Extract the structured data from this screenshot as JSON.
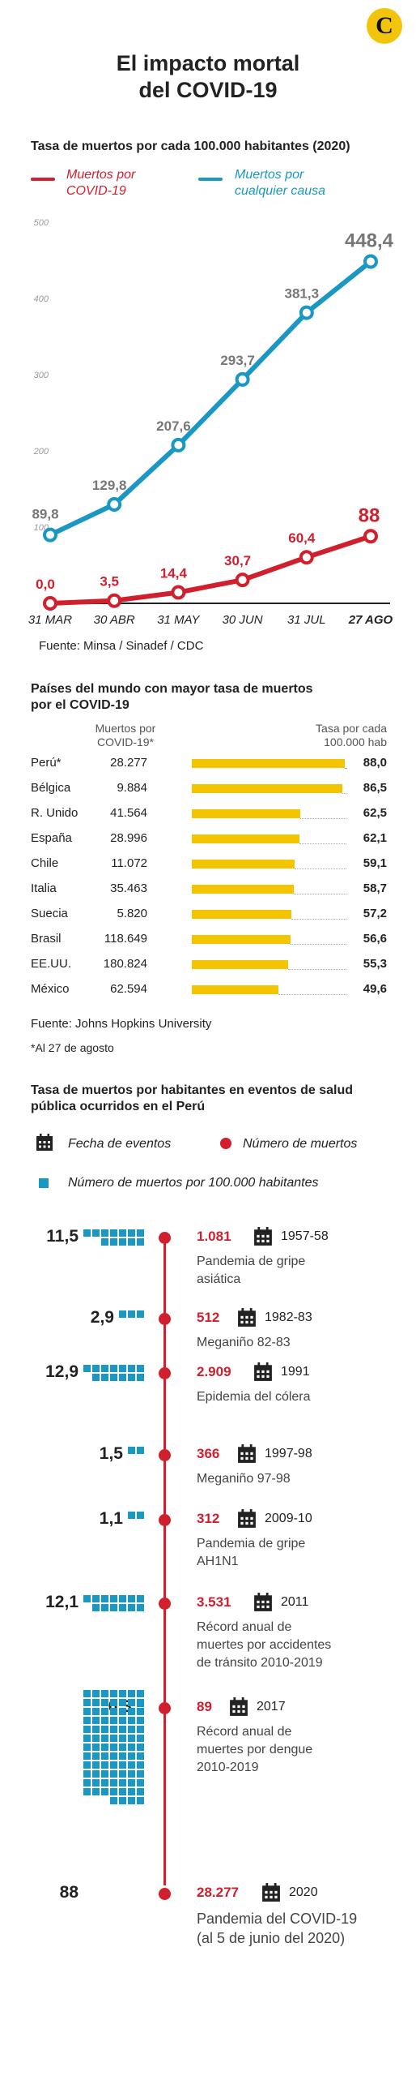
{
  "logo": {
    "letter": "C"
  },
  "title_line1": "El impacto mortal",
  "title_line2": "del COVID-19",
  "section1": {
    "title": "Tasa de muertos por cada 100.000 habitantes (2020)",
    "legend_red_line1": "Muertos por",
    "legend_red_line2": "COVID-19",
    "legend_blue_line1": "Muertos por",
    "legend_blue_line2": "cualquier causa",
    "source": "Fuente: Minsa / Sinadef / CDC"
  },
  "chart_data": {
    "type": "line",
    "categories": [
      "31 MAR",
      "30 ABR",
      "31 MAY",
      "30 JUN",
      "31 JUL",
      "27 AGO"
    ],
    "ylim": [
      0,
      500
    ],
    "yticks": [
      0,
      100,
      200,
      300,
      400,
      500
    ],
    "series": [
      {
        "name": "Muertos por COVID-19",
        "color": "#d0202e",
        "values": [
          0.0,
          3.5,
          14.4,
          30.7,
          60.4,
          88
        ],
        "labels": [
          "0,0",
          "3,5",
          "14,4",
          "30,7",
          "60,4",
          "88"
        ]
      },
      {
        "name": "Muertos por cualquier causa",
        "color": "#1a97c2",
        "values": [
          89.8,
          129.8,
          207.6,
          293.7,
          381.3,
          448.4
        ],
        "labels": [
          "89,8",
          "129,8",
          "207,6",
          "293,7",
          "381,3",
          "448,4"
        ]
      }
    ],
    "grid": false,
    "legend": "top"
  },
  "section2": {
    "title_line1": "Países del mundo con mayor tasa de muertos",
    "title_line2": "por el COVID-19",
    "col_deaths_line1": "Muertos por",
    "col_deaths_line2": "COVID-19*",
    "col_rate_line1": "Tasa por cada",
    "col_rate_line2": "100.000 hab",
    "rows": [
      {
        "country": "Perú*",
        "deaths": "28.277",
        "rate": "88,0",
        "rate_value": 88.0
      },
      {
        "country": "Bélgica",
        "deaths": "9.884",
        "rate": "86,5",
        "rate_value": 86.5
      },
      {
        "country": "R. Unido",
        "deaths": "41.564",
        "rate": "62,5",
        "rate_value": 62.5
      },
      {
        "country": "España",
        "deaths": "28.996",
        "rate": "62,1",
        "rate_value": 62.1
      },
      {
        "country": "Chile",
        "deaths": "11.072",
        "rate": "59,1",
        "rate_value": 59.1
      },
      {
        "country": "Italia",
        "deaths": "35.463",
        "rate": "58,7",
        "rate_value": 58.7
      },
      {
        "country": "Suecia",
        "deaths": "5.820",
        "rate": "57,2",
        "rate_value": 57.2
      },
      {
        "country": "Brasil",
        "deaths": "118.649",
        "rate": "56,6",
        "rate_value": 56.6
      },
      {
        "country": "EE.UU.",
        "deaths": "180.824",
        "rate": "55,3",
        "rate_value": 55.3
      },
      {
        "country": "México",
        "deaths": "62.594",
        "rate": "49,6",
        "rate_value": 49.6
      }
    ],
    "bar_color": "#f5c400",
    "source": "Fuente: Johns Hopkins University",
    "footnote": "*Al 27 de agosto"
  },
  "section3": {
    "title_line1": "Tasa de muertos por habitantes en eventos de salud",
    "title_line2": "pública ocurridos en el Perú",
    "legend_calendar": "Fecha de eventos",
    "legend_dot": "Número de muertos",
    "legend_square": "Número de muertos por 100.000 habitantes",
    "square_color": "#1a97c2",
    "dot_color": "#d0202e",
    "events": [
      {
        "value": "11,5",
        "rate": 11.5,
        "deaths": "1.081",
        "year": "1957-58",
        "desc": [
          "Pandemia de gripe",
          "asiática"
        ]
      },
      {
        "value": "2,9",
        "rate": 2.9,
        "deaths": "512",
        "year": "1982-83",
        "desc": [
          "Meganiño 82-83"
        ]
      },
      {
        "value": "12,9",
        "rate": 12.9,
        "deaths": "2.909",
        "year": "1991",
        "desc": [
          "Epidemia del cólera"
        ]
      },
      {
        "value": "1,5",
        "rate": 1.5,
        "deaths": "366",
        "year": "1997-98",
        "desc": [
          "Meganiño 97-98"
        ]
      },
      {
        "value": "1,1",
        "rate": 1.1,
        "deaths": "312",
        "year": "2009-10",
        "desc": [
          "Pandemia de gripe",
          "AH1N1"
        ]
      },
      {
        "value": "12,1",
        "rate": 12.1,
        "deaths": "3.531",
        "year": "2011",
        "desc": [
          "Récord anual de",
          "muertes por accidentes",
          "de tránsito 2010-2019"
        ]
      },
      {
        "value": "0,3",
        "rate": 0.3,
        "deaths": "89",
        "year": "2017",
        "desc": [
          "Récord anual de",
          "muertes por dengue",
          "2010-2019"
        ]
      },
      {
        "value": "88",
        "rate": 88,
        "deaths": "28.277",
        "year": "2020",
        "desc": [
          "Pandemia del COVID-19",
          "(al 5 de junio del 2020)"
        ]
      }
    ]
  }
}
